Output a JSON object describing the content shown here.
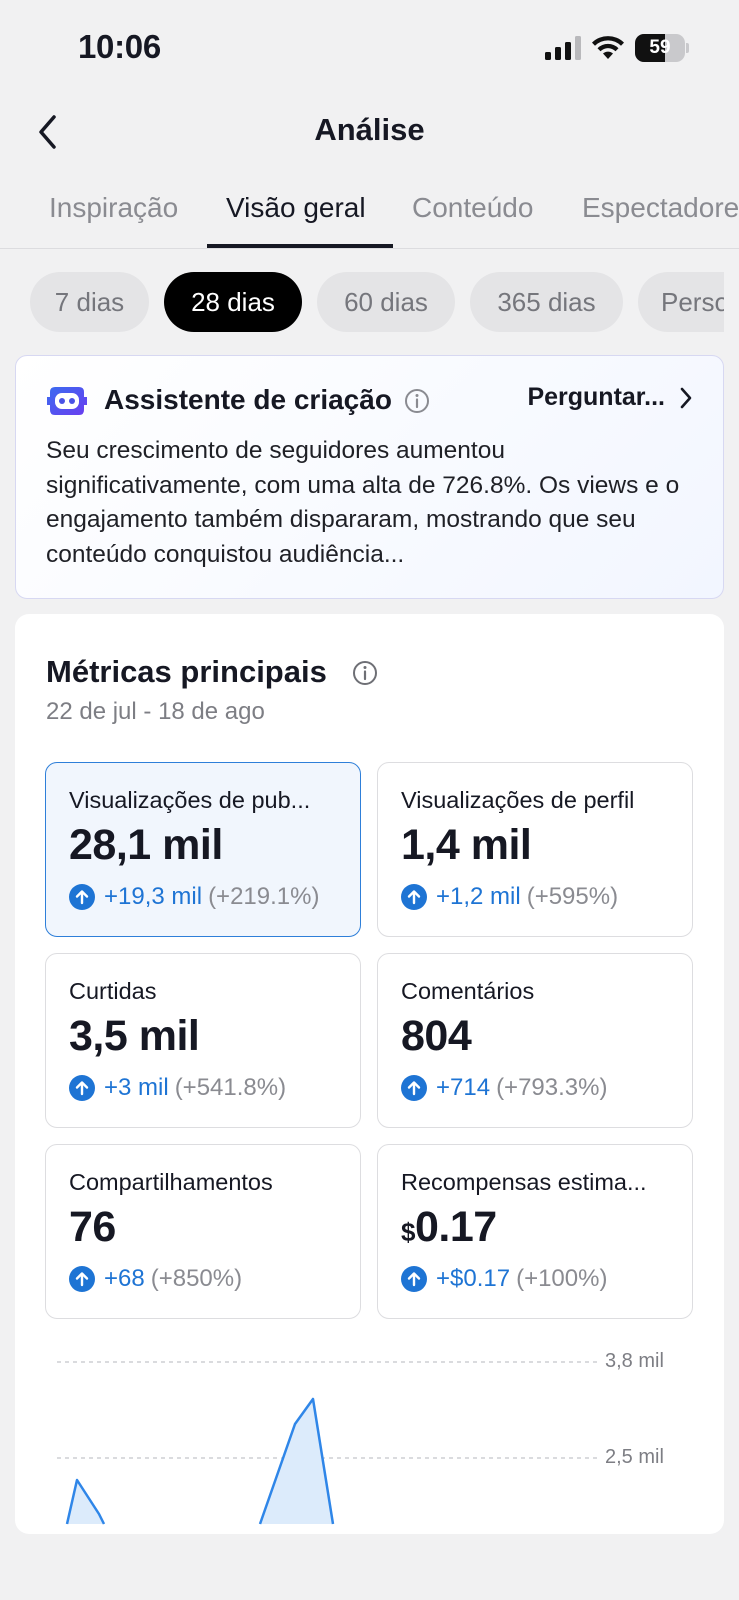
{
  "status_bar": {
    "time": "10:06",
    "battery": "59",
    "battery_level": 0.59
  },
  "header": {
    "title": "Análise"
  },
  "tabs": [
    "Inspiração",
    "Visão geral",
    "Conteúdo",
    "Espectadores"
  ],
  "ranges": [
    "7 dias",
    "28 dias",
    "60 dias",
    "365 dias",
    "Personalizado"
  ],
  "assistant": {
    "title": "Assistente de criação",
    "ask_label": "Perguntar...",
    "text": "Seu crescimento de seguidores aumentou significativamente, com uma alta de 726.8%. Os views e o engajamento também dispararam, mostrando que seu conteúdo conquistou audiência..."
  },
  "metrics_panel": {
    "title": "Métricas principais",
    "date_range": "22 de jul - 18 de ago",
    "cards": [
      {
        "label": "Visualizações de pub...",
        "value": "28,1 mil",
        "delta": "+19,3 mil",
        "pct": "(+219.1%)"
      },
      {
        "label": "Visualizações de perfil",
        "value": "1,4 mil",
        "delta": "+1,2 mil",
        "pct": "(+595%)"
      },
      {
        "label": "Curtidas",
        "value": "3,5 mil",
        "delta": "+3 mil",
        "pct": "(+541.8%)"
      },
      {
        "label": "Comentários",
        "value": "804",
        "delta": "+714",
        "pct": "(+793.3%)"
      },
      {
        "label": "Compartilhamentos",
        "value": "76",
        "delta": "+68",
        "pct": "(+850%)"
      },
      {
        "label": "Recompensas estima...",
        "currency": "$",
        "value": "0.17",
        "delta": "+$0.17",
        "pct": "(+100%)"
      }
    ]
  },
  "chart_data": {
    "type": "area",
    "y_ticks": [
      "3,8 mil",
      "2,5 mil"
    ],
    "grid": true,
    "color": "#2f86e8",
    "fill": "#dcebfb"
  },
  "colors": {
    "accent": "#1e74d4",
    "active_border": "#2e7fd9",
    "text": "#161823"
  }
}
